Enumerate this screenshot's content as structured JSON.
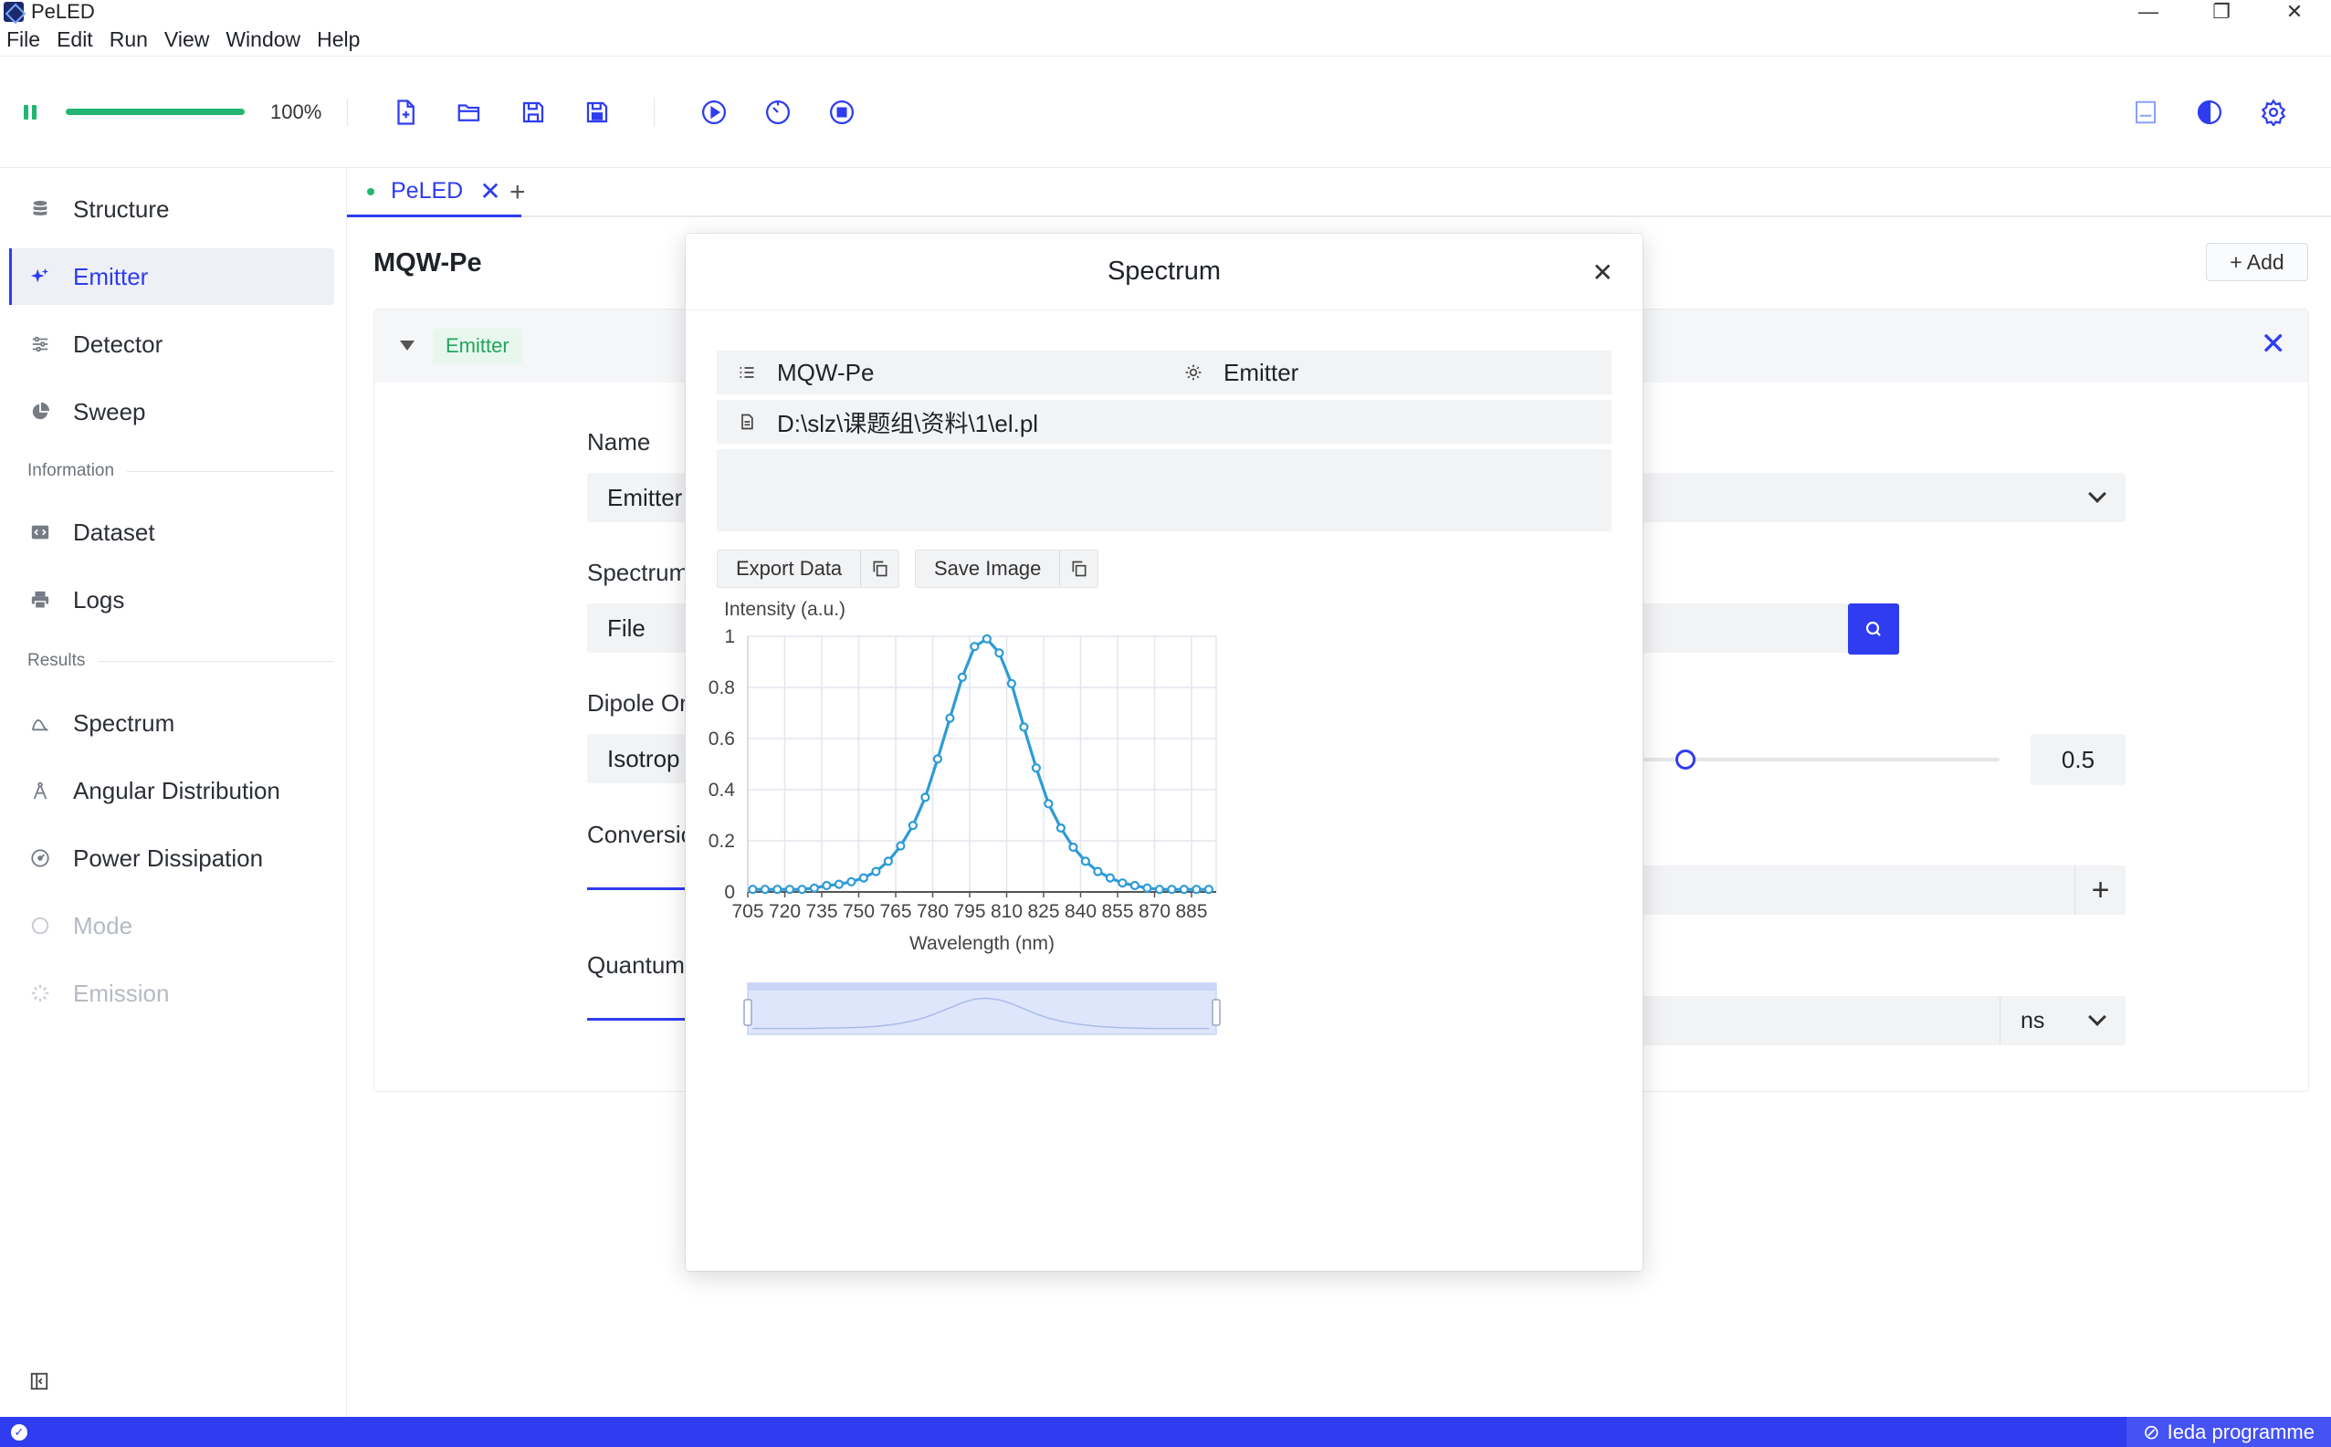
{
  "window": {
    "title": "PeLED"
  },
  "menu": [
    "File",
    "Edit",
    "Run",
    "View",
    "Window",
    "Help"
  ],
  "toolbar": {
    "progress": 1.0,
    "percent_label": "100%"
  },
  "sidebar": {
    "items": [
      {
        "label": "Structure",
        "icon": "database-icon",
        "state": "normal"
      },
      {
        "label": "Emitter",
        "icon": "sparkle-icon",
        "state": "active"
      },
      {
        "label": "Detector",
        "icon": "sliders-icon",
        "state": "normal"
      },
      {
        "label": "Sweep",
        "icon": "pie-icon",
        "state": "normal"
      }
    ],
    "info_section": "Information",
    "info_items": [
      {
        "label": "Dataset",
        "icon": "code-icon"
      },
      {
        "label": "Logs",
        "icon": "printer-icon"
      }
    ],
    "results_section": "Results",
    "results_items": [
      {
        "label": "Spectrum",
        "icon": "spectrum-icon",
        "state": "normal"
      },
      {
        "label": "Angular Distribution",
        "icon": "compass-icon",
        "state": "normal"
      },
      {
        "label": "Power Dissipation",
        "icon": "gauge-icon",
        "state": "normal"
      },
      {
        "label": "Mode",
        "icon": "circle-icon",
        "state": "disabled"
      },
      {
        "label": "Emission",
        "icon": "loader-icon",
        "state": "disabled"
      }
    ]
  },
  "tabs": [
    {
      "label": "PeLED"
    }
  ],
  "page": {
    "title": "MQW-Pe",
    "add_label": "+ Add",
    "panel_badge": "Emitter",
    "fields": {
      "name_label": "Name",
      "name_value": "Emitter",
      "spectrum_label": "Spectrum",
      "spectrum_value": "File",
      "dipole_label": "Dipole Or",
      "dipole_value": "Isotrop",
      "slider_value": 0.5,
      "slider_value_text": "0.5",
      "conversion_label": "Conversio",
      "quantum_label": "Quantum",
      "unit_value": "ns"
    }
  },
  "modal": {
    "title": "Spectrum",
    "structure": "MQW-Pe",
    "emitter": "Emitter",
    "file_path": "D:\\slz\\课题组\\资料\\1\\el.pl",
    "export_label": "Export Data",
    "save_label": "Save Image"
  },
  "status": {
    "right_label": "Ieda programme"
  },
  "colors": {
    "accent": "#2f3cf0",
    "success": "#22b573",
    "series": "#2e9bd6"
  },
  "chart_data": {
    "type": "line",
    "ylabel": "Intensity (a.u.)",
    "xlabel": "Wavelength (nm)",
    "xlim": [
      705,
      895
    ],
    "ylim": [
      0,
      1
    ],
    "yticks": [
      0,
      0.2,
      0.4,
      0.6,
      0.8,
      1
    ],
    "xticks": [
      705,
      720,
      735,
      750,
      765,
      780,
      795,
      810,
      825,
      840,
      855,
      870,
      885
    ],
    "grid": true,
    "x": [
      707,
      712,
      717,
      722,
      727,
      732,
      737,
      742,
      747,
      752,
      757,
      762,
      767,
      772,
      777,
      782,
      787,
      792,
      797,
      802,
      807,
      812,
      817,
      822,
      827,
      832,
      837,
      842,
      847,
      852,
      857,
      862,
      867,
      872,
      877,
      882,
      887,
      892
    ],
    "y": [
      0.01,
      0.01,
      0.01,
      0.01,
      0.01,
      0.015,
      0.025,
      0.03,
      0.04,
      0.055,
      0.08,
      0.12,
      0.18,
      0.26,
      0.37,
      0.52,
      0.68,
      0.84,
      0.96,
      0.99,
      0.935,
      0.815,
      0.645,
      0.485,
      0.345,
      0.25,
      0.175,
      0.12,
      0.08,
      0.055,
      0.035,
      0.025,
      0.015,
      0.01,
      0.01,
      0.01,
      0.01,
      0.01
    ]
  }
}
